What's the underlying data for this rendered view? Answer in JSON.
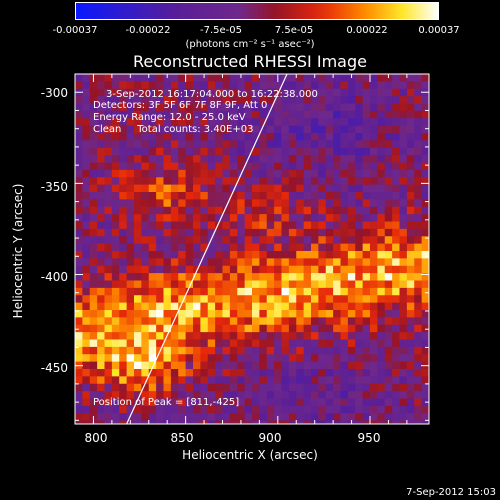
{
  "colorbar": {
    "ticks": [
      "-0.00037",
      "-0.00022",
      "-7.5e-05",
      "7.5e-05",
      "0.00022",
      "0.00037"
    ],
    "units": "(photons cm⁻² s⁻¹ asec⁻²)",
    "range": [
      -0.00037,
      0.00037
    ]
  },
  "chart_data": {
    "type": "heatmap",
    "title": "Reconstructed RHESSI Image",
    "xlabel": "Heliocentric X (arcsec)",
    "ylabel": "Heliocentric Y (arcsec)",
    "xlim": [
      790,
      982
    ],
    "ylim": [
      -482,
      -290
    ],
    "xticks": [
      "800",
      "850",
      "900",
      "950"
    ],
    "yticks": [
      "-300",
      "-350",
      "-400",
      "-450"
    ],
    "grid": false,
    "limb_line": [
      [
        818,
        -482
      ],
      [
        905,
        -290
      ]
    ],
    "annotations": [
      "3-Sep-2012 16:17:04.000 to 16:22:38.000",
      "Detectors: 3F 5F 6F 7F 8F 9F, Att 0",
      "Energy Range: 12.0 - 25.0 keV",
      "Clean     Total counts: 3.40E+03"
    ],
    "peak_label": "Position of Peak = [811,-425]",
    "peak": [
      811,
      -425
    ]
  },
  "footer": "7-Sep-2012 15:03"
}
